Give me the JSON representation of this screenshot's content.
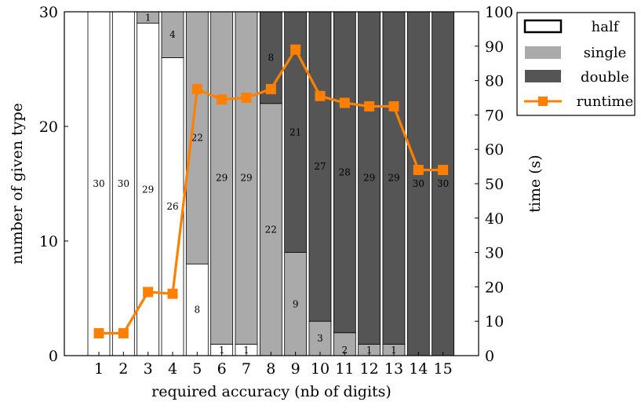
{
  "chart_data": {
    "type": "bar",
    "stacked": true,
    "xlabel": "required accuracy (nb of digits)",
    "ylabel": "number of given type",
    "y2label": "time (s)",
    "categories": [
      "1",
      "2",
      "3",
      "4",
      "5",
      "6",
      "7",
      "8",
      "9",
      "10",
      "11",
      "12",
      "13",
      "14",
      "15"
    ],
    "ylim": [
      0,
      30
    ],
    "y2lim": [
      0,
      100
    ],
    "yticks": [
      "0",
      "10",
      "20",
      "30"
    ],
    "y2ticks": [
      "0",
      "10",
      "20",
      "30",
      "40",
      "50",
      "60",
      "70",
      "80",
      "90",
      "100"
    ],
    "grid": false,
    "legend_position": "top-right",
    "series": [
      {
        "name": "half",
        "color": "#ffffff",
        "values": [
          30,
          30,
          29,
          26,
          8,
          1,
          1,
          0,
          0,
          0,
          0,
          0,
          0,
          0,
          0
        ]
      },
      {
        "name": "single",
        "color": "#aaaaaa",
        "values": [
          0,
          0,
          1,
          4,
          22,
          29,
          29,
          22,
          9,
          3,
          2,
          1,
          1,
          0,
          0
        ]
      },
      {
        "name": "double",
        "color": "#555555",
        "values": [
          0,
          0,
          0,
          0,
          0,
          0,
          0,
          8,
          21,
          27,
          28,
          29,
          29,
          30,
          30
        ]
      }
    ],
    "line_series": {
      "name": "runtime",
      "color": "#ff8000",
      "axis": "right",
      "values": [
        6.5,
        6.5,
        18.5,
        18,
        77.5,
        74.5,
        75,
        77.5,
        89,
        75.5,
        73.5,
        72.5,
        72.5,
        54,
        54
      ]
    }
  }
}
